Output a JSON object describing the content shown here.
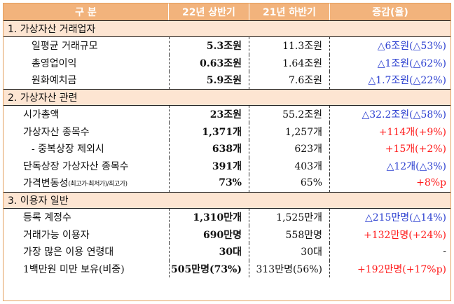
{
  "headers": [
    "구  분",
    "22년 상반기",
    "21년 하반기",
    "증감(율)"
  ],
  "sections": [
    {
      "title": "1. 가상자산 거래업자",
      "rows": [
        {
          "label": "일평균 거래규모",
          "h22": "5.3조원",
          "h21": "11.3조원",
          "change": "△6조원(△53%)",
          "tone": "blue",
          "indent": "ind2"
        },
        {
          "label": "총영업이익",
          "h22": "0.63조원",
          "h21": "1.64조원",
          "change": "△1조원(△62%)",
          "tone": "blue",
          "indent": "ind2"
        },
        {
          "label": "원화예치금",
          "h22": "5.9조원",
          "h21": "7.6조원",
          "change": "△1.7조원(△22%)",
          "tone": "blue",
          "indent": "ind2"
        }
      ]
    },
    {
      "title": "2. 가상자산 관련",
      "rows": [
        {
          "label": "시가총액",
          "h22": "23조원",
          "h21": "55.2조원",
          "change": "△32.2조원(△58%)",
          "tone": "blue",
          "indent": "ind1"
        },
        {
          "label": "가상자산 종목수",
          "h22": "1,371개",
          "h21": "1,257개",
          "change": "+114개(+9%)",
          "tone": "red",
          "indent": "ind1"
        },
        {
          "label": "- 중복상장 제외시",
          "h22": "638개",
          "h21": "623개",
          "change": "+15개(+2%)",
          "tone": "red",
          "indent": "ind2"
        },
        {
          "label": "단독상장 가상자산 종목수",
          "h22": "391개",
          "h21": "403개",
          "change": "△12개(△3%)",
          "tone": "blue",
          "indent": "ind1"
        },
        {
          "label": "가격변동성",
          "label_note": "(최고가-최저가)/최고가)",
          "h22": "73%",
          "h21": "65%",
          "change": "+8%p",
          "tone": "red",
          "indent": "ind1"
        }
      ]
    },
    {
      "title": "3. 이용자 일반",
      "rows": [
        {
          "label": "등록 계정수",
          "h22": "1,310만개",
          "h21": "1,525만개",
          "change": "△215만명(△14%)",
          "tone": "blue",
          "indent": "ind1"
        },
        {
          "label": "거래가능 이용자",
          "h22": "690만명",
          "h21": "558만명",
          "change": "+132만명(+24%)",
          "tone": "red",
          "indent": "ind1"
        },
        {
          "label": "가장 많은 이용 연령대",
          "h22": "30대",
          "h21": "30대",
          "change": "-",
          "tone": "plain",
          "indent": "ind1"
        },
        {
          "label": "1백만원 미만 보유(비중)",
          "h22": "505만명(73%)",
          "h21": "313만명(56%)",
          "change": "+192만명(+17%p)",
          "tone": "red",
          "indent": "ind1"
        }
      ]
    }
  ]
}
